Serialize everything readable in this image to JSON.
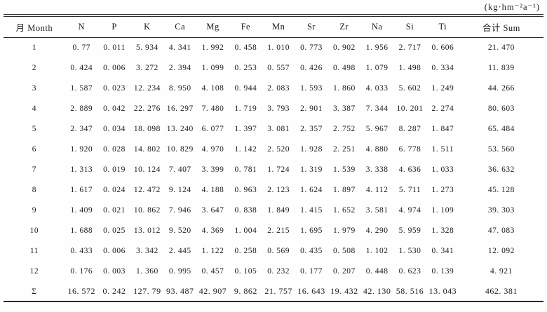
{
  "units_label": "(kg·hm⁻²a⁻¹)",
  "table": {
    "columns": [
      "月 Month",
      "N",
      "P",
      "K",
      "Ca",
      "Mg",
      "Fe",
      "Mn",
      "Sr",
      "Zr",
      "Na",
      "Si",
      "Ti",
      "合计 Sum"
    ],
    "rows": [
      [
        "1",
        "0.77",
        "0.011",
        "5.934",
        "4.341",
        "1.992",
        "0.458",
        "1.010",
        "0.773",
        "0.902",
        "1.956",
        "2.717",
        "0.606",
        "21.470"
      ],
      [
        "2",
        "0.424",
        "0.006",
        "3.272",
        "2.394",
        "1.099",
        "0.253",
        "0.557",
        "0.426",
        "0.498",
        "1.079",
        "1.498",
        "0.334",
        "11.839"
      ],
      [
        "3",
        "1.587",
        "0.023",
        "12.234",
        "8.950",
        "4.108",
        "0.944",
        "2.083",
        "1.593",
        "1.860",
        "4.033",
        "5.602",
        "1.249",
        "44.266"
      ],
      [
        "4",
        "2.889",
        "0.042",
        "22.276",
        "16.297",
        "7.480",
        "1.719",
        "3.793",
        "2.901",
        "3.387",
        "7.344",
        "10.201",
        "2.274",
        "80.603"
      ],
      [
        "5",
        "2.347",
        "0.034",
        "18.098",
        "13.240",
        "6.077",
        "1.397",
        "3.081",
        "2.357",
        "2.752",
        "5.967",
        "8.287",
        "1.847",
        "65.484"
      ],
      [
        "6",
        "1.920",
        "0.028",
        "14.802",
        "10.829",
        "4.970",
        "1.142",
        "2.520",
        "1.928",
        "2.251",
        "4.880",
        "6.778",
        "1.511",
        "53.560"
      ],
      [
        "7",
        "1.313",
        "0.019",
        "10.124",
        "7.407",
        "3.399",
        "0.781",
        "1.724",
        "1.319",
        "1.539",
        "3.338",
        "4.636",
        "1.033",
        "36.632"
      ],
      [
        "8",
        "1.617",
        "0.024",
        "12.472",
        "9.124",
        "4.188",
        "0.963",
        "2.123",
        "1.624",
        "1.897",
        "4.112",
        "5.711",
        "1.273",
        "45.128"
      ],
      [
        "9",
        "1.409",
        "0.021",
        "10.862",
        "7.946",
        "3.647",
        "0.838",
        "1.849",
        "1.415",
        "1.652",
        "3.581",
        "4.974",
        "1.109",
        "39.303"
      ],
      [
        "10",
        "1.688",
        "0.025",
        "13.012",
        "9.520",
        "4.369",
        "1.004",
        "2.215",
        "1.695",
        "1.979",
        "4.290",
        "5.959",
        "1.328",
        "47.083"
      ],
      [
        "11",
        "0.433",
        "0.006",
        "3.342",
        "2.445",
        "1.122",
        "0.258",
        "0.569",
        "0.435",
        "0.508",
        "1.102",
        "1.530",
        "0.341",
        "12.092"
      ],
      [
        "12",
        "0.176",
        "0.003",
        "1.360",
        "0.995",
        "0.457",
        "0.105",
        "0.232",
        "0.177",
        "0.207",
        "0.448",
        "0.623",
        "0.139",
        "4.921"
      ],
      [
        "Σ",
        "16.572",
        "0.242",
        "127.79",
        "93.487",
        "42.907",
        "9.862",
        "21.757",
        "16.643",
        "19.432",
        "42.130",
        "58.516",
        "13.043",
        "462.381"
      ]
    ]
  }
}
